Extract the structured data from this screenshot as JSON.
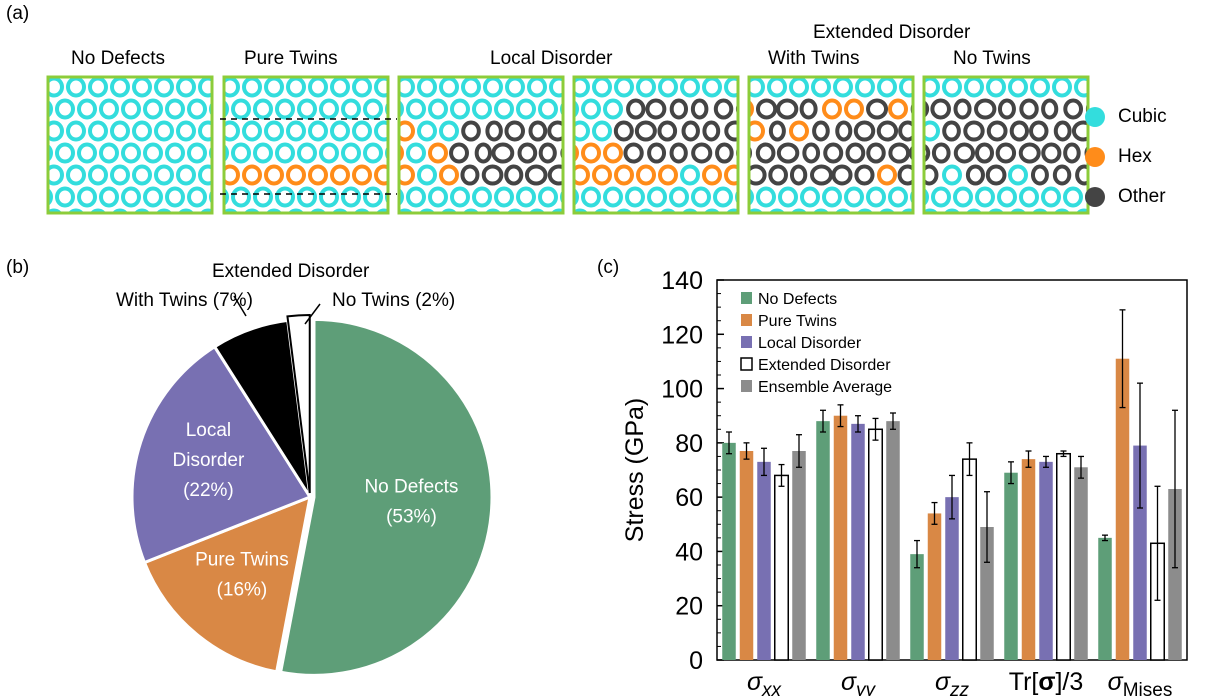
{
  "panel_a": {
    "letter": "(a)",
    "group_header": "Extended Disorder",
    "titles": [
      "No Defects",
      "Pure Twins",
      "Local Disorder",
      "With Twins",
      "No Twins"
    ],
    "legend": [
      {
        "label": "Cubic",
        "color": "#33dddd"
      },
      {
        "label": "Hex",
        "color": "#ff8c1a"
      },
      {
        "label": "Other",
        "color": "#444444"
      }
    ]
  },
  "chart_data": [
    {
      "type": "pie",
      "panel": "(b)",
      "slices": [
        {
          "label": "No Defects",
          "percent_label": "(53%)",
          "value": 53,
          "color": "#5e9e78"
        },
        {
          "label": "Pure Twins",
          "percent_label": "(16%)",
          "value": 16,
          "color": "#d98845"
        },
        {
          "label": "Local Disorder",
          "percent_label": "(22%)",
          "value": 22,
          "color": "#7870b2"
        },
        {
          "label": "With Twins (7%)",
          "value": 7,
          "color": "#000000"
        },
        {
          "label": "No Twins (2%)",
          "value": 2,
          "color": "#ffffff"
        }
      ],
      "outer_header": "Extended Disorder"
    },
    {
      "type": "bar",
      "panel": "(c)",
      "ylabel": "Stress (GPa)",
      "ylim": [
        0,
        140
      ],
      "yticks": [
        0,
        20,
        40,
        60,
        80,
        100,
        120,
        140
      ],
      "categories": [
        "σxx",
        "σyy",
        "σzz",
        "Tr[σ]/3",
        "σMises"
      ],
      "series": [
        {
          "name": "No Defects",
          "color": "#5e9e78",
          "values": [
            80,
            88,
            39,
            69,
            45
          ],
          "errors": [
            4,
            4,
            5,
            4,
            1
          ]
        },
        {
          "name": "Pure Twins",
          "color": "#d98845",
          "values": [
            77,
            90,
            54,
            74,
            111
          ],
          "errors": [
            3,
            4,
            4,
            3,
            18
          ]
        },
        {
          "name": "Local Disorder",
          "color": "#7870b2",
          "values": [
            73,
            87,
            60,
            73,
            79
          ],
          "errors": [
            5,
            3,
            8,
            2,
            23
          ]
        },
        {
          "name": "Extended Disorder",
          "color": "#ffffff",
          "values": [
            68,
            85,
            74,
            76,
            43
          ],
          "errors": [
            4,
            4,
            6,
            1,
            21
          ]
        },
        {
          "name": "Ensemble Average",
          "color": "#8c8c8c",
          "values": [
            77,
            88,
            49,
            71,
            63
          ],
          "errors": [
            6,
            3,
            13,
            4,
            29
          ]
        }
      ]
    }
  ]
}
